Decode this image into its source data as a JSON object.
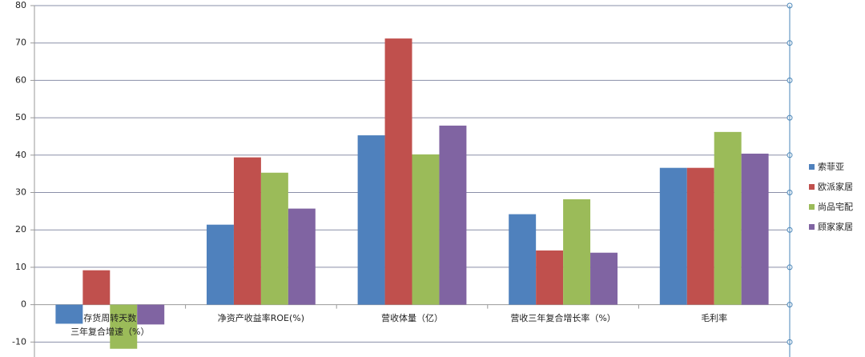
{
  "chart_data": {
    "type": "bar",
    "categories": [
      "存货周转天数\n三年复合增速（%）",
      "净资产收益率ROE(%)",
      "营收体量（亿）",
      "营收三年复合增长率（%）",
      "毛利率"
    ],
    "series": [
      {
        "name": "索菲亚",
        "color": "#4f81bd",
        "values": [
          -5.1,
          21.4,
          45.3,
          24.2,
          36.6
        ]
      },
      {
        "name": "欧派家居",
        "color": "#c0504d",
        "values": [
          9.2,
          39.4,
          71.2,
          14.5,
          36.6
        ]
      },
      {
        "name": "尚品宅配",
        "color": "#9bbb59",
        "values": [
          -11.8,
          35.3,
          40.2,
          28.2,
          46.2
        ]
      },
      {
        "name": "顾家家居",
        "color": "#8064a2",
        "values": [
          -5.3,
          25.7,
          47.9,
          13.9,
          40.4
        ]
      }
    ],
    "ylim": [
      -14,
      80
    ],
    "yticks": [
      -10,
      0,
      10,
      20,
      30,
      40,
      50,
      60,
      70,
      80
    ],
    "grid": true,
    "legend": "right"
  }
}
